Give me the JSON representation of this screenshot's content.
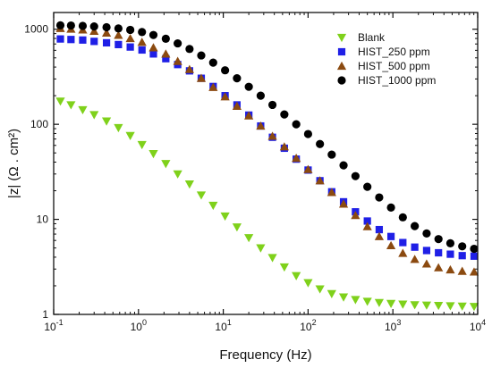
{
  "chart_data": {
    "type": "scatter",
    "xlabel": "Frequency (Hz)",
    "ylabel": "|z| (Ω . cm²)",
    "xscale": "log",
    "yscale": "log",
    "xlim": [
      0.1,
      10000
    ],
    "ylim": [
      1,
      1500
    ],
    "x_ticks": [
      {
        "base": "10",
        "exp": "-1"
      },
      {
        "base": "10",
        "exp": "0"
      },
      {
        "base": "10",
        "exp": "1"
      },
      {
        "base": "10",
        "exp": "2"
      },
      {
        "base": "10",
        "exp": "3"
      },
      {
        "base": "10",
        "exp": "4"
      }
    ],
    "y_ticks": [
      {
        "value": 1,
        "label": "1"
      },
      {
        "value": 10,
        "label": "10"
      },
      {
        "value": 100,
        "label": "100"
      },
      {
        "value": 1000,
        "label": "1000"
      }
    ],
    "legend_position": "top-right",
    "series": [
      {
        "name": "Blank",
        "marker": "triangle-down",
        "color": "#7fd11b",
        "x": [
          0.12,
          0.16,
          0.22,
          0.3,
          0.42,
          0.58,
          0.8,
          1.1,
          1.5,
          2.1,
          2.9,
          4.0,
          5.5,
          7.6,
          10.5,
          14.5,
          20,
          27.6,
          38,
          52.5,
          72.5,
          100,
          138,
          190,
          262,
          362,
          500,
          690,
          950,
          1310,
          1810,
          2500,
          3450,
          4760,
          6570,
          9070
        ],
        "y": [
          175,
          160,
          142,
          126,
          108,
          92,
          76,
          61,
          49,
          38.5,
          30,
          23.5,
          18,
          14,
          10.8,
          8.3,
          6.4,
          5.0,
          3.95,
          3.15,
          2.55,
          2.15,
          1.85,
          1.65,
          1.52,
          1.43,
          1.37,
          1.33,
          1.3,
          1.28,
          1.26,
          1.25,
          1.24,
          1.23,
          1.22,
          1.21
        ]
      },
      {
        "name": "HIST_250 ppm",
        "marker": "square",
        "color": "#1f1fe6",
        "x": [
          0.12,
          0.16,
          0.22,
          0.3,
          0.42,
          0.58,
          0.8,
          1.1,
          1.5,
          2.1,
          2.9,
          4.0,
          5.5,
          7.6,
          10.5,
          14.5,
          20,
          27.6,
          38,
          52.5,
          72.5,
          100,
          138,
          190,
          262,
          362,
          500,
          690,
          950,
          1310,
          1810,
          2500,
          3450,
          4760,
          6570,
          9070
        ],
        "y": [
          790,
          780,
          770,
          745,
          720,
          690,
          650,
          605,
          550,
          490,
          425,
          365,
          305,
          250,
          200,
          160,
          125,
          96,
          73,
          56,
          43,
          33,
          25.5,
          19.5,
          15.3,
          12,
          9.6,
          7.8,
          6.6,
          5.7,
          5.1,
          4.7,
          4.45,
          4.3,
          4.15,
          4.1
        ]
      },
      {
        "name": "HIST_500 ppm",
        "marker": "triangle-up",
        "color": "#8b4a10",
        "x": [
          0.12,
          0.16,
          0.22,
          0.3,
          0.42,
          0.58,
          0.8,
          1.1,
          1.5,
          2.1,
          2.9,
          4.0,
          5.5,
          7.6,
          10.5,
          14.5,
          20,
          27.6,
          38,
          52.5,
          72.5,
          100,
          138,
          190,
          262,
          362,
          500,
          690,
          950,
          1310,
          1810,
          2500,
          3450,
          4760,
          6570,
          9070
        ],
        "y": [
          1020,
          1005,
          985,
          955,
          915,
          865,
          800,
          730,
          640,
          550,
          460,
          378,
          305,
          245,
          195,
          155,
          123,
          96,
          75,
          58,
          44,
          33.5,
          25.5,
          19.2,
          14.5,
          11,
          8.4,
          6.6,
          5.3,
          4.4,
          3.8,
          3.4,
          3.1,
          2.95,
          2.85,
          2.8
        ]
      },
      {
        "name": "HIST_1000 ppm",
        "marker": "circle",
        "color": "#000000",
        "x": [
          0.12,
          0.16,
          0.22,
          0.3,
          0.42,
          0.58,
          0.8,
          1.1,
          1.5,
          2.1,
          2.9,
          4.0,
          5.5,
          7.6,
          10.5,
          14.5,
          20,
          27.6,
          38,
          52.5,
          72.5,
          100,
          138,
          190,
          262,
          362,
          500,
          690,
          950,
          1310,
          1810,
          2500,
          3450,
          4760,
          6570,
          9070
        ],
        "y": [
          1100,
          1095,
          1085,
          1070,
          1050,
          1020,
          985,
          935,
          870,
          795,
          710,
          620,
          530,
          445,
          370,
          305,
          248,
          200,
          160,
          127,
          100,
          79,
          62,
          48,
          37,
          28.5,
          22,
          17,
          13.3,
          10.5,
          8.5,
          7.1,
          6.2,
          5.6,
          5.2,
          4.9
        ]
      }
    ]
  }
}
